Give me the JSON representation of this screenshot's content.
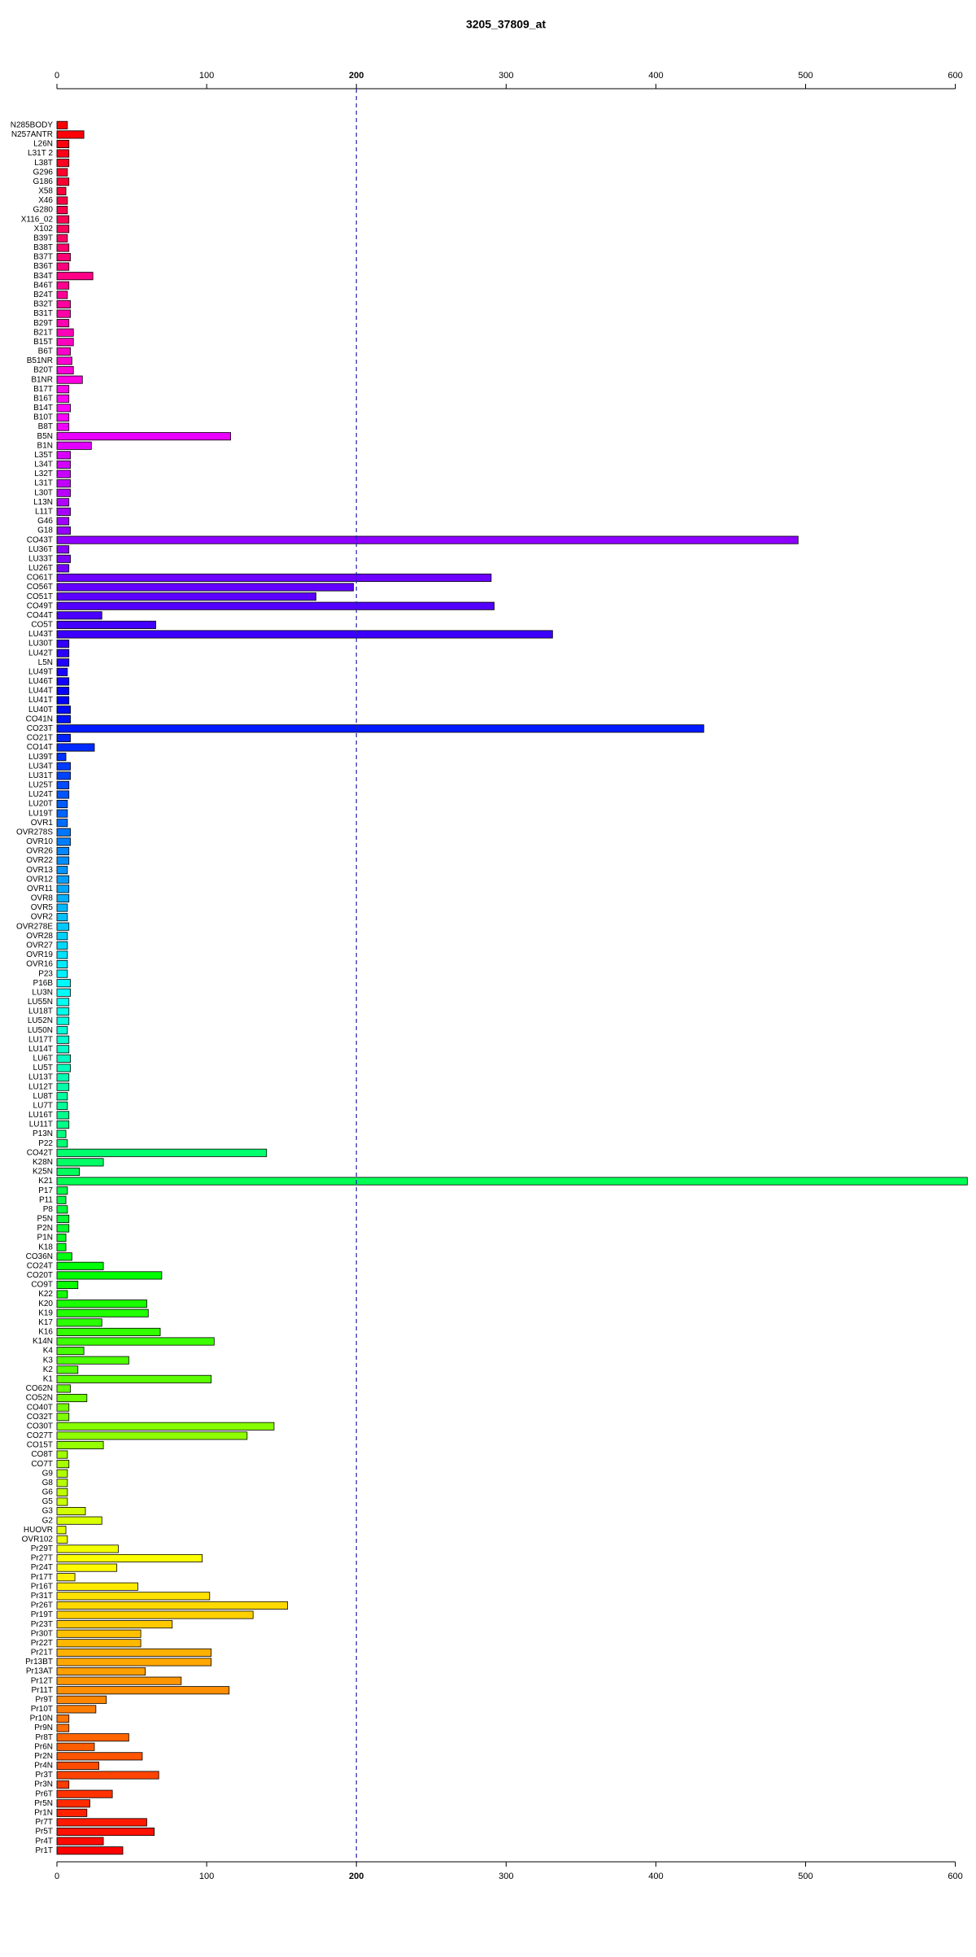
{
  "chart_data": {
    "type": "barh",
    "title": "3205_37809_at",
    "categories": [
      "N285BODY",
      "N257ANTR",
      "L26N",
      "L31T 2",
      "L38T",
      "G296",
      "G186",
      "X58",
      "X46",
      "G280",
      "X116_02",
      "X102",
      "B39T",
      "B38T",
      "B37T",
      "B36T",
      "B34T",
      "B46T",
      "B24T",
      "B32T",
      "B31T",
      "B29T",
      "B21T",
      "B15T",
      "B6T",
      "B51NR",
      "B20T",
      "B1NR",
      "B17T",
      "B16T",
      "B14T",
      "B10T",
      "B8T",
      "B5N",
      "B1N",
      "L35T",
      "L34T",
      "L32T",
      "L31T",
      "L30T",
      "L13N",
      "L11T",
      "G46",
      "G18",
      "CO43T",
      "LU36T",
      "LU33T",
      "LU26T",
      "CO61T",
      "CO56T",
      "CO51T",
      "CO49T",
      "CO44T",
      "CO5T",
      "LU43T",
      "LU30T",
      "LU42T",
      "L5N",
      "LU49T",
      "LU46T",
      "LU44T",
      "LU41T",
      "LU40T",
      "CO41N",
      "CO23T",
      "CO21T",
      "CO14T",
      "LU39T",
      "LU34T",
      "LU31T",
      "LU25T",
      "LU24T",
      "LU20T",
      "LU19T",
      "OVR1",
      "OVR278S",
      "OVR10",
      "OVR26",
      "OVR22",
      "OVR13",
      "OVR12",
      "OVR11",
      "OVR8",
      "OVR5",
      "OVR2",
      "OVR278E",
      "OVR28",
      "OVR27",
      "OVR19",
      "OVR16",
      "P23",
      "P16B",
      "LU3N",
      "LU55N",
      "LU18T",
      "LU52N",
      "LU50N",
      "LU17T",
      "LU14T",
      "LU6T",
      "LU5T",
      "LU13T",
      "LU12T",
      "LU8T",
      "LU7T",
      "LU16T",
      "LU11T",
      "P13N",
      "P22",
      "CO42T",
      "K28N",
      "K25N",
      "K21",
      "P17",
      "P11",
      "P8",
      "P5N",
      "P2N",
      "P1N",
      "K18",
      "CO36N",
      "CO24T",
      "CO20T",
      "CO9T",
      "K22",
      "K20",
      "K19",
      "K17",
      "K16",
      "K14N",
      "K4",
      "K3",
      "K2",
      "K1",
      "CO62N",
      "CO52N",
      "CO40T",
      "CO32T",
      "CO30T",
      "CO27T",
      "CO15T",
      "CO8T",
      "CO7T",
      "G9",
      "G8",
      "G6",
      "G5",
      "G3",
      "G2",
      "HUOVR",
      "OVR102",
      "Pr29T",
      "Pr27T",
      "Pr24T",
      "Pr17T",
      "Pr16T",
      "Pr31T",
      "Pr26T",
      "Pr19T",
      "Pr23T",
      "Pr30T",
      "Pr22T",
      "Pr21T",
      "Pr13BT",
      "Pr13AT",
      "Pr12T",
      "Pr11T",
      "Pr9T",
      "Pr10T",
      "Pr10N",
      "Pr9N",
      "Pr8T",
      "Pr6N",
      "Pr2N",
      "Pr4N",
      "Pr3T",
      "Pr3N",
      "Pr6T",
      "Pr5N",
      "Pr1N",
      "Pr7T",
      "Pr5T",
      "Pr4T",
      "Pr1T"
    ],
    "values": [
      7,
      18,
      8,
      8,
      8,
      7,
      8,
      6,
      7,
      7,
      8,
      8,
      7,
      8,
      9,
      8,
      24,
      8,
      7,
      9,
      9,
      8,
      11,
      11,
      9,
      10,
      11,
      17,
      8,
      8,
      9,
      8,
      8,
      116,
      23,
      9,
      9,
      9,
      9,
      9,
      8,
      9,
      8,
      9,
      495,
      8,
      9,
      8,
      290,
      198,
      173,
      292,
      30,
      66,
      331,
      8,
      8,
      8,
      7,
      8,
      8,
      8,
      9,
      9,
      432,
      9,
      25,
      6,
      9,
      9,
      8,
      8,
      7,
      7,
      7,
      9,
      9,
      8,
      8,
      7,
      8,
      8,
      8,
      7,
      7,
      8,
      7,
      7,
      7,
      7,
      7,
      9,
      9,
      8,
      8,
      8,
      7,
      8,
      8,
      9,
      9,
      8,
      8,
      7,
      7,
      8,
      8,
      6,
      7,
      140,
      31,
      15,
      608,
      7,
      6,
      7,
      8,
      8,
      6,
      6,
      10,
      31,
      70,
      14,
      7,
      60,
      61,
      30,
      69,
      105,
      18,
      48,
      14,
      103,
      9,
      20,
      8,
      8,
      145,
      127,
      31,
      7,
      8,
      7,
      7,
      7,
      7,
      19,
      30,
      6,
      7,
      41,
      97,
      40,
      12,
      54,
      102,
      154,
      131,
      77,
      56,
      56,
      103,
      103,
      59,
      83,
      115,
      33,
      26,
      8,
      8,
      48,
      25,
      57,
      28,
      68,
      8,
      37,
      22,
      20,
      60,
      65,
      31,
      44
    ],
    "palette": "rainbow",
    "xlim": [
      0,
      610
    ],
    "xticks": [
      0,
      100,
      200,
      300,
      400,
      500,
      600
    ],
    "reference_line": 200
  }
}
